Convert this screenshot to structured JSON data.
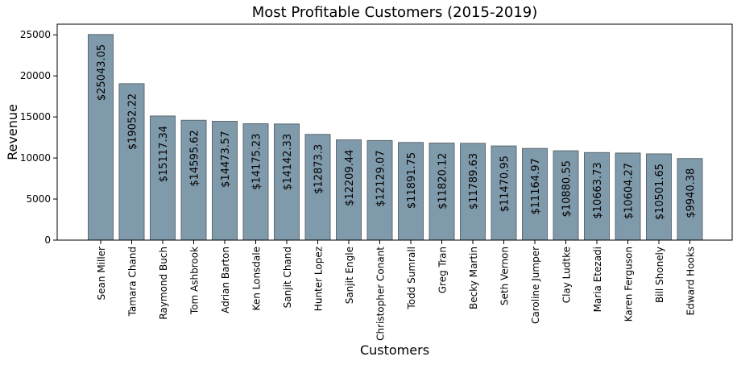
{
  "chart_data": {
    "type": "bar",
    "title": "Most Profitable Customers (2015-2019)",
    "xlabel": "Customers",
    "ylabel": "Revenue",
    "ylim": [
      0,
      26300
    ],
    "yticks": [
      0,
      5000,
      10000,
      15000,
      20000,
      25000
    ],
    "ytick_labels": [
      "0",
      "5000",
      "10000",
      "15000",
      "20000",
      "25000"
    ],
    "grid": false,
    "bar_color": "#7f9aab",
    "bar_edge_color": "#5f6a70",
    "categories": [
      "Sean Miller",
      "Tamara Chand",
      "Raymond Buch",
      "Tom Ashbrook",
      "Adrian Barton",
      "Ken Lonsdale",
      "Sanjit Chand",
      "Hunter Lopez",
      "Sanjit Engle",
      "Christopher Conant",
      "Todd Sumrall",
      "Greg Tran",
      "Becky Martin",
      "Seth Vernon",
      "Caroline Jumper",
      "Clay Ludtke",
      "Maria Etezadi",
      "Karen Ferguson",
      "Bill Shonely",
      "Edward Hooks"
    ],
    "values": [
      25043.05,
      19052.22,
      15117.34,
      14595.62,
      14473.57,
      14175.23,
      14142.33,
      12873.3,
      12209.44,
      12129.07,
      11891.75,
      11820.12,
      11789.63,
      11470.95,
      11164.97,
      10880.55,
      10663.73,
      10604.27,
      10501.65,
      9940.38
    ],
    "data_labels": [
      "$25043.05",
      "$19052.22",
      "$15117.34",
      "$14595.62",
      "$14473.57",
      "$14175.23",
      "$14142.33",
      "$12873.3",
      "$12209.44",
      "$12129.07",
      "$11891.75",
      "$11820.12",
      "$11789.63",
      "$11470.95",
      "$11164.97",
      "$10880.55",
      "$10663.73",
      "$10604.27",
      "$10501.65",
      "$9940.38"
    ]
  }
}
